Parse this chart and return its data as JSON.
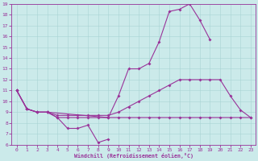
{
  "bg_color": "#cbeaea",
  "grid_color": "#a8d4d4",
  "line_color": "#993399",
  "xlabel": "Windchill (Refroidissement éolien,°C)",
  "ylim": [
    6,
    19
  ],
  "xlim": [
    -0.5,
    23.5
  ],
  "yticks": [
    6,
    7,
    8,
    9,
    10,
    11,
    12,
    13,
    14,
    15,
    16,
    17,
    18,
    19
  ],
  "xticks": [
    0,
    1,
    2,
    3,
    4,
    5,
    6,
    7,
    8,
    9,
    10,
    11,
    12,
    13,
    14,
    15,
    16,
    17,
    18,
    19,
    20,
    21,
    22,
    23
  ],
  "line1_x": [
    0,
    1,
    2,
    3,
    4,
    5,
    6,
    7,
    8,
    9,
    10,
    11,
    12,
    13,
    14,
    15,
    16,
    17,
    18,
    19,
    20,
    21,
    22,
    23
  ],
  "line1_y": [
    11,
    9.3,
    9.0,
    9.0,
    8.5,
    8.5,
    8.5,
    8.5,
    8.5,
    8.5,
    8.5,
    8.5,
    8.5,
    8.5,
    8.5,
    8.5,
    8.5,
    8.5,
    8.5,
    8.5,
    8.5,
    8.5,
    8.5,
    8.5
  ],
  "line2_x": [
    0,
    1,
    2,
    3,
    4,
    5,
    6,
    7,
    8,
    9,
    10,
    11,
    12,
    13,
    14,
    15,
    16,
    17,
    18,
    19,
    20,
    21,
    22,
    23
  ],
  "line2_y": [
    11,
    9.3,
    9.0,
    9.0,
    8.7,
    8.7,
    8.7,
    8.7,
    8.7,
    8.7,
    9.0,
    9.5,
    10.0,
    10.5,
    11.0,
    11.5,
    12.0,
    12.0,
    12.0,
    12.0,
    12.0,
    10.5,
    9.2,
    8.5
  ],
  "line3_x": [
    0,
    1,
    2,
    3,
    4,
    5,
    6,
    7,
    8,
    9
  ],
  "line3_y": [
    11,
    9.3,
    9.0,
    9.0,
    8.5,
    7.5,
    7.5,
    7.8,
    6.2,
    6.5
  ],
  "line4_x": [
    0,
    1,
    2,
    3,
    9,
    10,
    11,
    12,
    13,
    14,
    15,
    16,
    17,
    18,
    19
  ],
  "line4_y": [
    11,
    9.3,
    9.0,
    9.0,
    8.5,
    10.5,
    13.0,
    13.0,
    13.5,
    15.5,
    18.3,
    18.5,
    19.0,
    17.5,
    15.7
  ]
}
